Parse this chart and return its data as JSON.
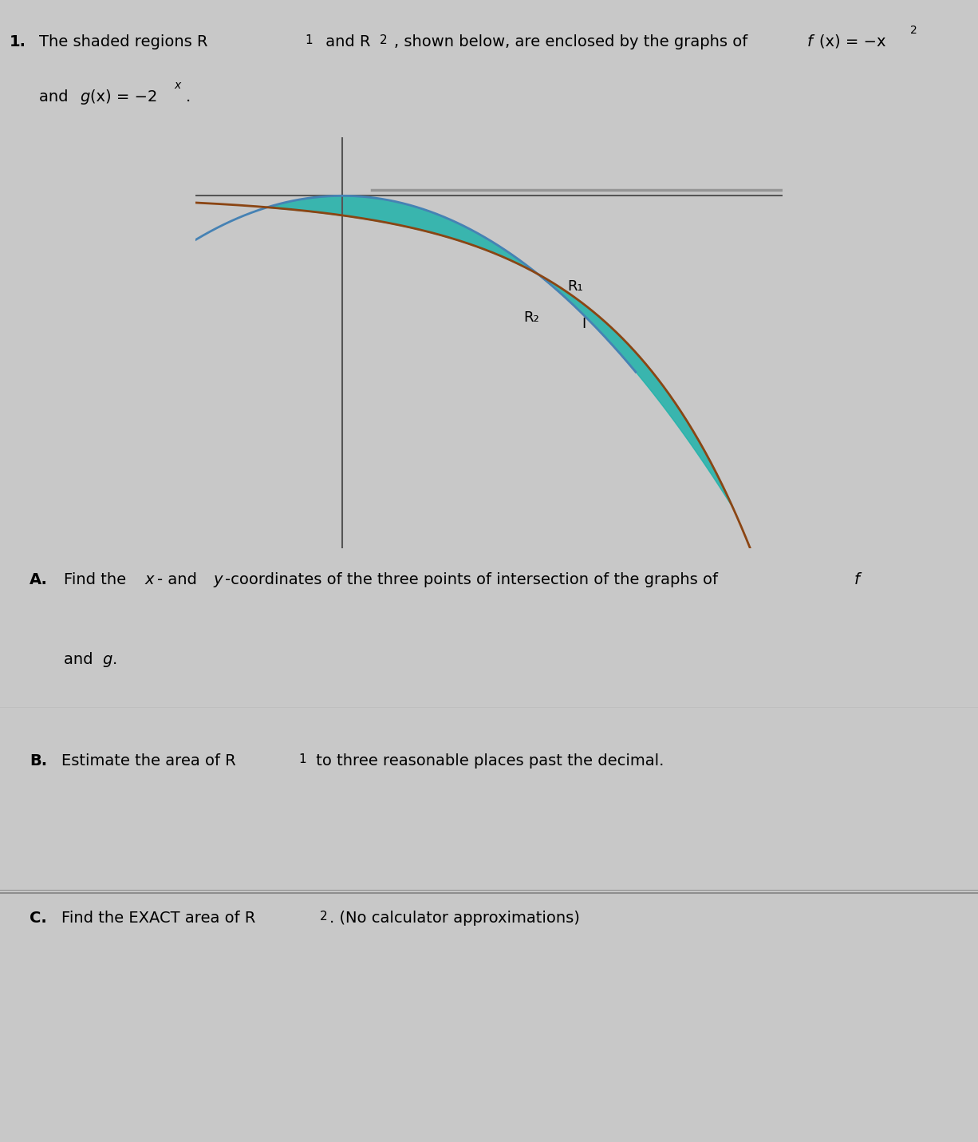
{
  "title_number": "1.",
  "title_text": "The shaded regions R",
  "title_sub1": "1",
  "title_text2": " and R",
  "title_sub2": "2",
  "title_text3": ", shown below, are enclosed by the graphs of ",
  "title_fx": "f(x) = −x",
  "title_fx_super": "2",
  "title_line2": "and g(x) = −2",
  "title_line2_super": "x",
  "title_line2_end": ".",
  "section_A": "A.",
  "text_A": "Find the x- and y-coordinates of the three points of intersection of the graphs of f\nand g.",
  "section_B": "B.",
  "text_B": "Estimate the area of R",
  "text_B_sub": "1",
  "text_B_end": " to three reasonable places past the decimal.",
  "section_C": "C.",
  "text_C": "Find the EXACT area of R",
  "text_C_sub": "2",
  "text_C_end": ". (No calculator approximations)",
  "bg_color": "#c8c8c8",
  "plot_bg": "#c8c8c8",
  "line_color_f": "#4682B4",
  "line_color_g": "#8B4513",
  "shaded_R1": "#20B2AA",
  "shaded_R2": "#20B2AA",
  "axis_color": "#555555",
  "text_color": "#000000",
  "section_bg_A": "#c8c8c8",
  "section_bg_B": "#b0b0b0",
  "section_bg_C": "#e0e0e0",
  "figsize": [
    12.26,
    14.31
  ],
  "dpi": 100
}
